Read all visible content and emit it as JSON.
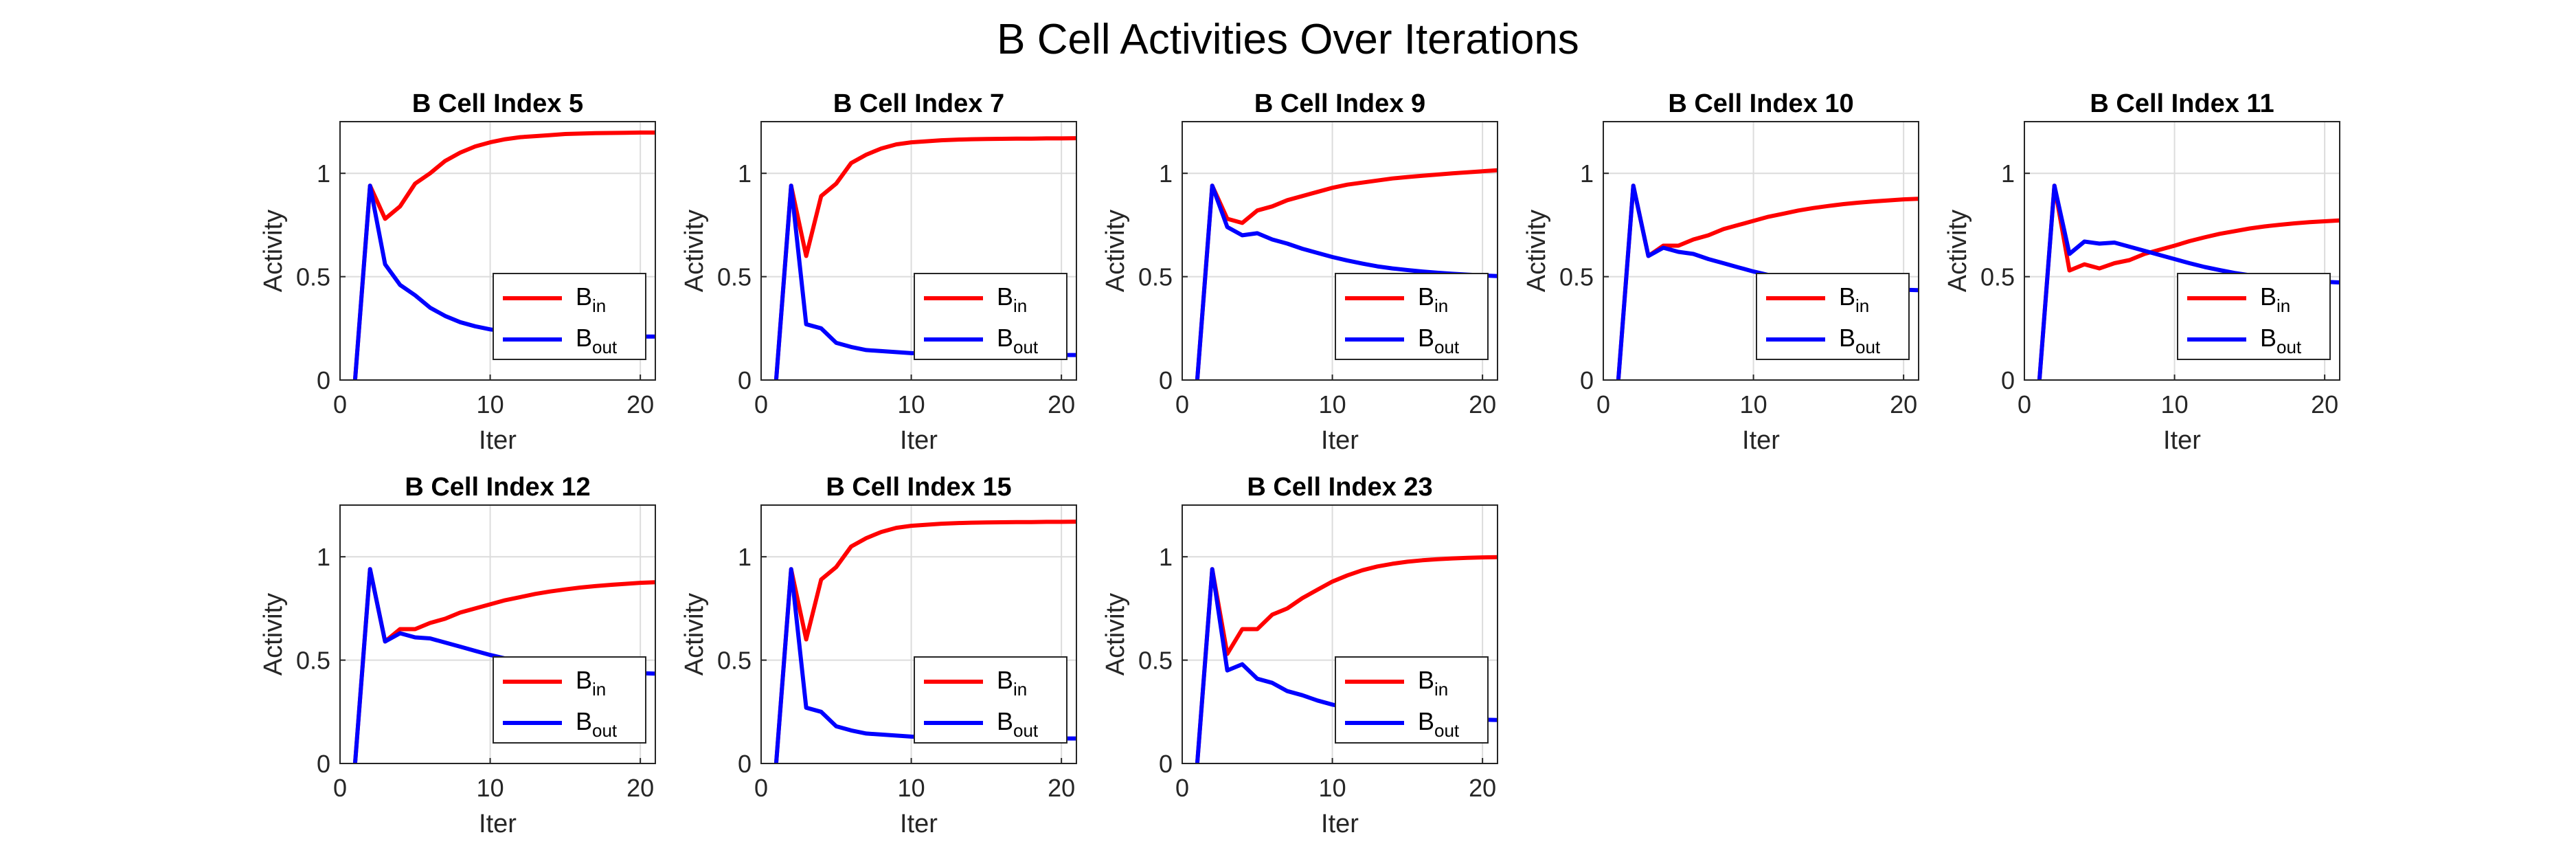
{
  "figure": {
    "title": "B Cell Activities Over Iterations"
  },
  "colors": {
    "b_in": "#ff0000",
    "b_out": "#0000ff",
    "grid": "#dcdcdc",
    "axis": "#262626"
  },
  "chart_data": [
    {
      "type": "line",
      "title": "B Cell Index 5",
      "xlabel": "Iter",
      "ylabel": "Activity",
      "xlim": [
        0,
        21
      ],
      "ylim": [
        0,
        1.25
      ],
      "xticks": [
        "0",
        "10",
        "20"
      ],
      "yticks": [
        "0",
        "0.5",
        "1"
      ],
      "grid": true,
      "legend_position": "bottom-right",
      "x": [
        1,
        2,
        3,
        4,
        5,
        6,
        7,
        8,
        9,
        10,
        11,
        12,
        13,
        14,
        15,
        16,
        17,
        18,
        19,
        20,
        21
      ],
      "series": [
        {
          "name": "B_in",
          "label_main": "B",
          "label_sub": "in",
          "color": "#ff0000",
          "values": [
            0,
            0.94,
            0.78,
            0.84,
            0.95,
            1.0,
            1.06,
            1.1,
            1.13,
            1.15,
            1.165,
            1.175,
            1.18,
            1.185,
            1.19,
            1.192,
            1.194,
            1.195,
            1.196,
            1.197,
            1.197
          ]
        },
        {
          "name": "B_out",
          "label_main": "B",
          "label_sub": "out",
          "color": "#0000ff",
          "values": [
            0,
            0.94,
            0.56,
            0.46,
            0.41,
            0.35,
            0.31,
            0.28,
            0.26,
            0.245,
            0.235,
            0.228,
            0.222,
            0.218,
            0.215,
            0.213,
            0.212,
            0.211,
            0.21,
            0.21,
            0.21
          ]
        }
      ]
    },
    {
      "type": "line",
      "title": "B Cell Index 7",
      "xlabel": "Iter",
      "ylabel": "Activity",
      "xlim": [
        0,
        21
      ],
      "ylim": [
        0,
        1.25
      ],
      "xticks": [
        "0",
        "10",
        "20"
      ],
      "yticks": [
        "0",
        "0.5",
        "1"
      ],
      "grid": true,
      "legend_position": "bottom-right",
      "x": [
        1,
        2,
        3,
        4,
        5,
        6,
        7,
        8,
        9,
        10,
        11,
        12,
        13,
        14,
        15,
        16,
        17,
        18,
        19,
        20,
        21
      ],
      "series": [
        {
          "name": "B_in",
          "label_main": "B",
          "label_sub": "in",
          "color": "#ff0000",
          "values": [
            0,
            0.94,
            0.6,
            0.89,
            0.95,
            1.05,
            1.09,
            1.12,
            1.14,
            1.15,
            1.155,
            1.16,
            1.163,
            1.165,
            1.166,
            1.167,
            1.168,
            1.168,
            1.169,
            1.169,
            1.17
          ]
        },
        {
          "name": "B_out",
          "label_main": "B",
          "label_sub": "out",
          "color": "#0000ff",
          "values": [
            0,
            0.94,
            0.27,
            0.25,
            0.18,
            0.16,
            0.145,
            0.14,
            0.135,
            0.13,
            0.128,
            0.126,
            0.125,
            0.124,
            0.123,
            0.123,
            0.122,
            0.122,
            0.122,
            0.121,
            0.121
          ]
        }
      ]
    },
    {
      "type": "line",
      "title": "B Cell Index 9",
      "xlabel": "Iter",
      "ylabel": "Activity",
      "xlim": [
        0,
        21
      ],
      "ylim": [
        0,
        1.25
      ],
      "xticks": [
        "0",
        "10",
        "20"
      ],
      "yticks": [
        "0",
        "0.5",
        "1"
      ],
      "grid": true,
      "legend_position": "bottom-right",
      "x": [
        1,
        2,
        3,
        4,
        5,
        6,
        7,
        8,
        9,
        10,
        11,
        12,
        13,
        14,
        15,
        16,
        17,
        18,
        19,
        20,
        21
      ],
      "series": [
        {
          "name": "B_in",
          "label_main": "B",
          "label_sub": "in",
          "color": "#ff0000",
          "values": [
            0,
            0.94,
            0.78,
            0.76,
            0.82,
            0.84,
            0.87,
            0.89,
            0.91,
            0.93,
            0.945,
            0.955,
            0.965,
            0.975,
            0.982,
            0.988,
            0.994,
            1.0,
            1.005,
            1.01,
            1.015
          ]
        },
        {
          "name": "B_out",
          "label_main": "B",
          "label_sub": "out",
          "color": "#0000ff",
          "values": [
            0,
            0.94,
            0.74,
            0.7,
            0.71,
            0.68,
            0.66,
            0.635,
            0.615,
            0.595,
            0.578,
            0.563,
            0.55,
            0.54,
            0.532,
            0.525,
            0.519,
            0.514,
            0.51,
            0.506,
            0.503
          ]
        }
      ]
    },
    {
      "type": "line",
      "title": "B Cell Index 10",
      "xlabel": "Iter",
      "ylabel": "Activity",
      "xlim": [
        0,
        21
      ],
      "ylim": [
        0,
        1.25
      ],
      "xticks": [
        "0",
        "10",
        "20"
      ],
      "yticks": [
        "0",
        "0.5",
        "1"
      ],
      "grid": true,
      "legend_position": "bottom-right",
      "x": [
        1,
        2,
        3,
        4,
        5,
        6,
        7,
        8,
        9,
        10,
        11,
        12,
        13,
        14,
        15,
        16,
        17,
        18,
        19,
        20,
        21
      ],
      "series": [
        {
          "name": "B_in",
          "label_main": "B",
          "label_sub": "in",
          "color": "#ff0000",
          "values": [
            0,
            0.94,
            0.6,
            0.65,
            0.65,
            0.68,
            0.7,
            0.73,
            0.75,
            0.77,
            0.79,
            0.805,
            0.82,
            0.832,
            0.842,
            0.851,
            0.858,
            0.864,
            0.869,
            0.874,
            0.877
          ]
        },
        {
          "name": "B_out",
          "label_main": "B",
          "label_sub": "out",
          "color": "#0000ff",
          "values": [
            0,
            0.94,
            0.6,
            0.64,
            0.62,
            0.61,
            0.585,
            0.565,
            0.545,
            0.525,
            0.508,
            0.493,
            0.48,
            0.47,
            0.462,
            0.455,
            0.449,
            0.444,
            0.44,
            0.437,
            0.435
          ]
        }
      ]
    },
    {
      "type": "line",
      "title": "B Cell Index 11",
      "xlabel": "Iter",
      "ylabel": "Activity",
      "xlim": [
        0,
        21
      ],
      "ylim": [
        0,
        1.25
      ],
      "xticks": [
        "0",
        "10",
        "20"
      ],
      "yticks": [
        "0",
        "0.5",
        "1"
      ],
      "grid": true,
      "legend_position": "bottom-right",
      "x": [
        1,
        2,
        3,
        4,
        5,
        6,
        7,
        8,
        9,
        10,
        11,
        12,
        13,
        14,
        15,
        16,
        17,
        18,
        19,
        20,
        21
      ],
      "series": [
        {
          "name": "B_in",
          "label_main": "B",
          "label_sub": "in",
          "color": "#ff0000",
          "values": [
            0,
            0.94,
            0.53,
            0.56,
            0.54,
            0.565,
            0.58,
            0.61,
            0.63,
            0.65,
            0.672,
            0.69,
            0.707,
            0.72,
            0.733,
            0.743,
            0.751,
            0.758,
            0.764,
            0.768,
            0.772
          ]
        },
        {
          "name": "B_out",
          "label_main": "B",
          "label_sub": "out",
          "color": "#0000ff",
          "values": [
            0,
            0.94,
            0.61,
            0.67,
            0.66,
            0.665,
            0.645,
            0.625,
            0.605,
            0.585,
            0.565,
            0.547,
            0.532,
            0.518,
            0.507,
            0.498,
            0.49,
            0.484,
            0.479,
            0.475,
            0.472
          ]
        }
      ]
    },
    {
      "type": "line",
      "title": "B Cell Index 12",
      "xlabel": "Iter",
      "ylabel": "Activity",
      "xlim": [
        0,
        21
      ],
      "ylim": [
        0,
        1.25
      ],
      "xticks": [
        "0",
        "10",
        "20"
      ],
      "yticks": [
        "0",
        "0.5",
        "1"
      ],
      "grid": true,
      "legend_position": "bottom-right",
      "x": [
        1,
        2,
        3,
        4,
        5,
        6,
        7,
        8,
        9,
        10,
        11,
        12,
        13,
        14,
        15,
        16,
        17,
        18,
        19,
        20,
        21
      ],
      "series": [
        {
          "name": "B_in",
          "label_main": "B",
          "label_sub": "in",
          "color": "#ff0000",
          "values": [
            0,
            0.94,
            0.59,
            0.65,
            0.65,
            0.68,
            0.7,
            0.73,
            0.75,
            0.77,
            0.79,
            0.805,
            0.82,
            0.832,
            0.842,
            0.851,
            0.858,
            0.864,
            0.869,
            0.874,
            0.877
          ]
        },
        {
          "name": "B_out",
          "label_main": "B",
          "label_sub": "out",
          "color": "#0000ff",
          "values": [
            0,
            0.94,
            0.59,
            0.63,
            0.61,
            0.605,
            0.585,
            0.565,
            0.545,
            0.525,
            0.508,
            0.493,
            0.48,
            0.47,
            0.462,
            0.455,
            0.449,
            0.444,
            0.44,
            0.437,
            0.435
          ]
        }
      ]
    },
    {
      "type": "line",
      "title": "B Cell Index 15",
      "xlabel": "Iter",
      "ylabel": "Activity",
      "xlim": [
        0,
        21
      ],
      "ylim": [
        0,
        1.25
      ],
      "xticks": [
        "0",
        "10",
        "20"
      ],
      "yticks": [
        "0",
        "0.5",
        "1"
      ],
      "grid": true,
      "legend_position": "bottom-right",
      "x": [
        1,
        2,
        3,
        4,
        5,
        6,
        7,
        8,
        9,
        10,
        11,
        12,
        13,
        14,
        15,
        16,
        17,
        18,
        19,
        20,
        21
      ],
      "series": [
        {
          "name": "B_in",
          "label_main": "B",
          "label_sub": "in",
          "color": "#ff0000",
          "values": [
            0,
            0.94,
            0.6,
            0.89,
            0.95,
            1.05,
            1.09,
            1.12,
            1.14,
            1.15,
            1.155,
            1.16,
            1.163,
            1.165,
            1.166,
            1.167,
            1.168,
            1.168,
            1.169,
            1.169,
            1.17
          ]
        },
        {
          "name": "B_out",
          "label_main": "B",
          "label_sub": "out",
          "color": "#0000ff",
          "values": [
            0,
            0.94,
            0.27,
            0.25,
            0.18,
            0.16,
            0.145,
            0.14,
            0.135,
            0.13,
            0.128,
            0.126,
            0.125,
            0.124,
            0.123,
            0.123,
            0.122,
            0.122,
            0.122,
            0.121,
            0.121
          ]
        }
      ]
    },
    {
      "type": "line",
      "title": "B Cell Index 23",
      "xlabel": "Iter",
      "ylabel": "Activity",
      "xlim": [
        0,
        21
      ],
      "ylim": [
        0,
        1.25
      ],
      "xticks": [
        "0",
        "10",
        "20"
      ],
      "yticks": [
        "0",
        "0.5",
        "1"
      ],
      "grid": true,
      "legend_position": "bottom-right",
      "x": [
        1,
        2,
        3,
        4,
        5,
        6,
        7,
        8,
        9,
        10,
        11,
        12,
        13,
        14,
        15,
        16,
        17,
        18,
        19,
        20,
        21
      ],
      "series": [
        {
          "name": "B_in",
          "label_main": "B",
          "label_sub": "in",
          "color": "#ff0000",
          "values": [
            0,
            0.94,
            0.53,
            0.65,
            0.65,
            0.72,
            0.75,
            0.8,
            0.84,
            0.88,
            0.91,
            0.935,
            0.953,
            0.966,
            0.976,
            0.983,
            0.988,
            0.992,
            0.995,
            0.997,
            0.998
          ]
        },
        {
          "name": "B_out",
          "label_main": "B",
          "label_sub": "out",
          "color": "#0000ff",
          "values": [
            0,
            0.94,
            0.45,
            0.48,
            0.41,
            0.39,
            0.35,
            0.33,
            0.305,
            0.285,
            0.27,
            0.258,
            0.248,
            0.24,
            0.233,
            0.227,
            0.222,
            0.218,
            0.215,
            0.212,
            0.21
          ]
        }
      ]
    }
  ]
}
